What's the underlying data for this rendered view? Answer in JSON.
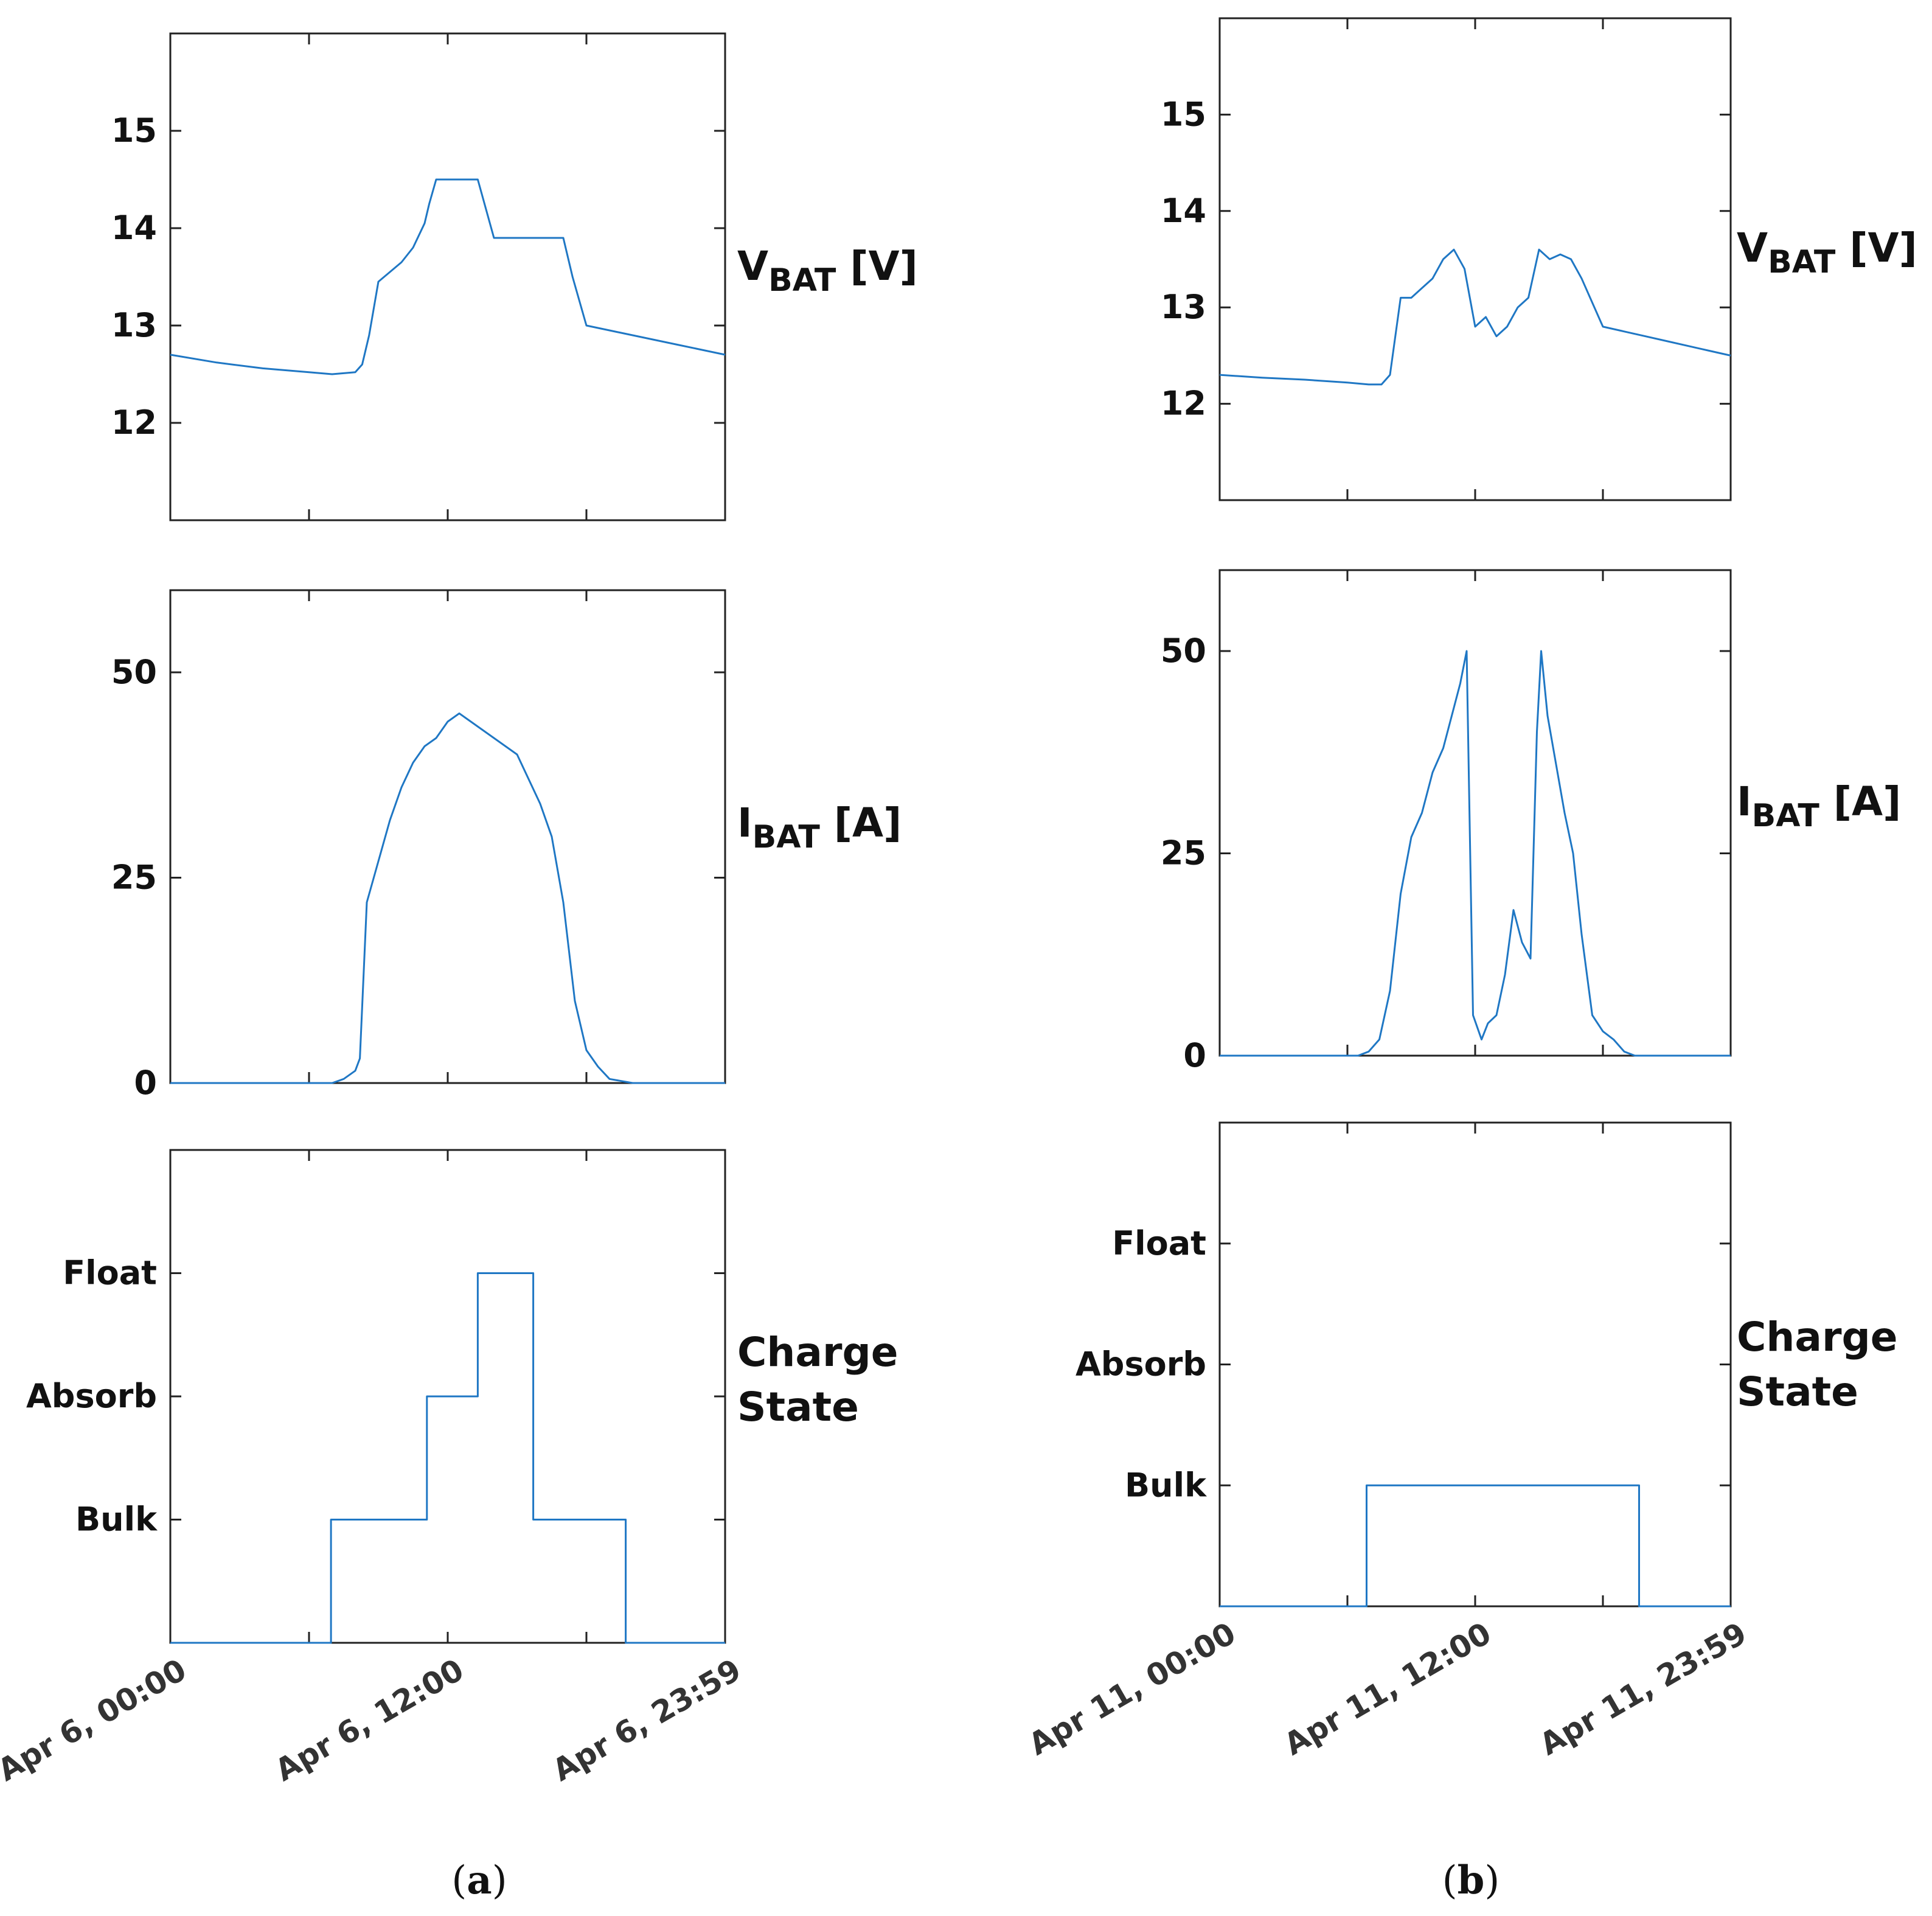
{
  "panel_captions": [
    {
      "open": "(",
      "letter": "a",
      "close": ")"
    },
    {
      "open": "(",
      "letter": "b",
      "close": ")"
    }
  ],
  "colors": {
    "series": "#1f77c4",
    "axis": "#222222",
    "text": "#111111"
  },
  "chart_data": [
    {
      "type": "line",
      "panel": "a",
      "ylabel": {
        "main": "V",
        "sub": "BAT",
        "unit": " [V]"
      },
      "ylim": [
        11,
        16
      ],
      "yticks": [
        12,
        13,
        14,
        15
      ],
      "ytick_labels": [
        "12",
        "13",
        "14",
        "15"
      ],
      "xlim": [
        0,
        24
      ],
      "xticks": [
        0,
        6,
        12,
        18,
        24
      ],
      "x": [
        0,
        2,
        4,
        6,
        7,
        8,
        8.3,
        8.6,
        9,
        10,
        10.5,
        11,
        11.2,
        11.5,
        12,
        12.5,
        13,
        13.3,
        14,
        15,
        15.5,
        16,
        16.4,
        16.8,
        17,
        17.4,
        18,
        19,
        20,
        21,
        22,
        23,
        24
      ],
      "values": [
        12.7,
        12.62,
        12.56,
        12.52,
        12.5,
        12.52,
        12.6,
        12.9,
        13.45,
        13.65,
        13.8,
        14.05,
        14.25,
        14.5,
        14.5,
        14.5,
        14.5,
        14.5,
        13.9,
        13.9,
        13.9,
        13.9,
        13.9,
        13.9,
        13.9,
        13.5,
        13.0,
        12.95,
        12.9,
        12.85,
        12.8,
        12.75,
        12.7
      ]
    },
    {
      "type": "line",
      "panel": "a",
      "ylabel": {
        "main": "I",
        "sub": "BAT",
        "unit": " [A]"
      },
      "ylim": [
        0,
        60
      ],
      "yticks": [
        0,
        25,
        50
      ],
      "ytick_labels": [
        "0",
        "25",
        "50"
      ],
      "xlim": [
        0,
        24
      ],
      "xticks": [
        0,
        6,
        12,
        18,
        24
      ],
      "x": [
        0,
        7,
        7.5,
        8,
        8.2,
        8.5,
        9,
        9.5,
        10,
        10.5,
        11,
        11.5,
        12,
        12.5,
        13,
        13.5,
        14,
        14.5,
        15,
        15.5,
        16,
        16.5,
        17,
        17.5,
        18,
        18.5,
        19,
        20,
        24
      ],
      "values": [
        0,
        0,
        0.5,
        1.5,
        3,
        22,
        27,
        32,
        36,
        39,
        41,
        42,
        44,
        45,
        44,
        43,
        42,
        41,
        40,
        37,
        34,
        30,
        22,
        10,
        4,
        2,
        0.5,
        0,
        0
      ]
    },
    {
      "type": "line",
      "panel": "a",
      "step": true,
      "ylabel": {
        "line1": "Charge",
        "line2": "State"
      },
      "ylim": [
        -1,
        3
      ],
      "yticks": [
        0,
        1,
        2
      ],
      "ytick_labels": [
        "Bulk",
        "Absorb",
        "Float"
      ],
      "xlim": [
        0,
        24
      ],
      "xticks": [
        0,
        6,
        12,
        18,
        24
      ],
      "xtick_labels": [
        "Apr 6, 00:00",
        "Apr 6, 12:00",
        "Apr 6, 23:59"
      ],
      "x": [
        0,
        6.95,
        6.95,
        11.1,
        11.1,
        13.3,
        13.3,
        15.7,
        15.7,
        19.7,
        19.7,
        24
      ],
      "values": [
        -1,
        -1,
        0,
        0,
        1,
        1,
        2,
        2,
        0,
        0,
        -1,
        -1
      ]
    },
    {
      "type": "line",
      "panel": "b",
      "ylabel": {
        "main": "V",
        "sub": "BAT",
        "unit": " [V]"
      },
      "ylim": [
        11,
        16
      ],
      "yticks": [
        12,
        13,
        14,
        15
      ],
      "ytick_labels": [
        "12",
        "13",
        "14",
        "15"
      ],
      "xlim": [
        0,
        24
      ],
      "xticks": [
        0,
        6,
        12,
        18,
        24
      ],
      "x": [
        0,
        2,
        4,
        6,
        7,
        7.6,
        8,
        8.5,
        9,
        9.5,
        10,
        10.5,
        11,
        11.5,
        12,
        12.5,
        13,
        13.5,
        14,
        14.5,
        15,
        15.5,
        16,
        16.5,
        17,
        18,
        19,
        20,
        21,
        22,
        23,
        24
      ],
      "values": [
        12.3,
        12.27,
        12.25,
        12.22,
        12.2,
        12.2,
        12.3,
        13.1,
        13.1,
        13.2,
        13.3,
        13.5,
        13.6,
        13.4,
        12.8,
        12.9,
        12.7,
        12.8,
        13.0,
        13.1,
        13.6,
        13.5,
        13.55,
        13.5,
        13.3,
        12.8,
        12.75,
        12.7,
        12.65,
        12.6,
        12.55,
        12.5
      ]
    },
    {
      "type": "line",
      "panel": "b",
      "ylabel": {
        "main": "I",
        "sub": "BAT",
        "unit": " [A]"
      },
      "ylim": [
        0,
        60
      ],
      "yticks": [
        0,
        25,
        50
      ],
      "ytick_labels": [
        "0",
        "25",
        "50"
      ],
      "xlim": [
        0,
        24
      ],
      "xticks": [
        0,
        6,
        12,
        18,
        24
      ],
      "x": [
        0,
        6.5,
        7,
        7.5,
        8,
        8.5,
        9,
        9.5,
        10,
        10.5,
        11,
        11.3,
        11.6,
        11.9,
        12.3,
        12.6,
        13,
        13.4,
        13.8,
        14.2,
        14.6,
        14.9,
        15.1,
        15.4,
        15.8,
        16.2,
        16.6,
        17,
        17.5,
        18,
        18.5,
        19,
        19.5,
        24
      ],
      "values": [
        0,
        0,
        0.5,
        2,
        8,
        20,
        27,
        30,
        35,
        38,
        43,
        46,
        50,
        5,
        2,
        4,
        5,
        10,
        18,
        14,
        12,
        40,
        50,
        42,
        36,
        30,
        25,
        15,
        5,
        3,
        2,
        0.5,
        0,
        0
      ]
    },
    {
      "type": "line",
      "panel": "b",
      "step": true,
      "ylabel": {
        "line1": "Charge",
        "line2": "State"
      },
      "ylim": [
        -1,
        3
      ],
      "yticks": [
        0,
        1,
        2
      ],
      "ytick_labels": [
        "Bulk",
        "Absorb",
        "Float"
      ],
      "xlim": [
        0,
        24
      ],
      "xticks": [
        0,
        6,
        12,
        18,
        24
      ],
      "xtick_labels": [
        "Apr 11, 00:00",
        "Apr 11, 12:00",
        "Apr 11, 23:59"
      ],
      "x": [
        0,
        6.9,
        6.9,
        19.7,
        19.7,
        24
      ],
      "values": [
        -1,
        -1,
        0,
        0,
        -1,
        -1
      ]
    }
  ]
}
